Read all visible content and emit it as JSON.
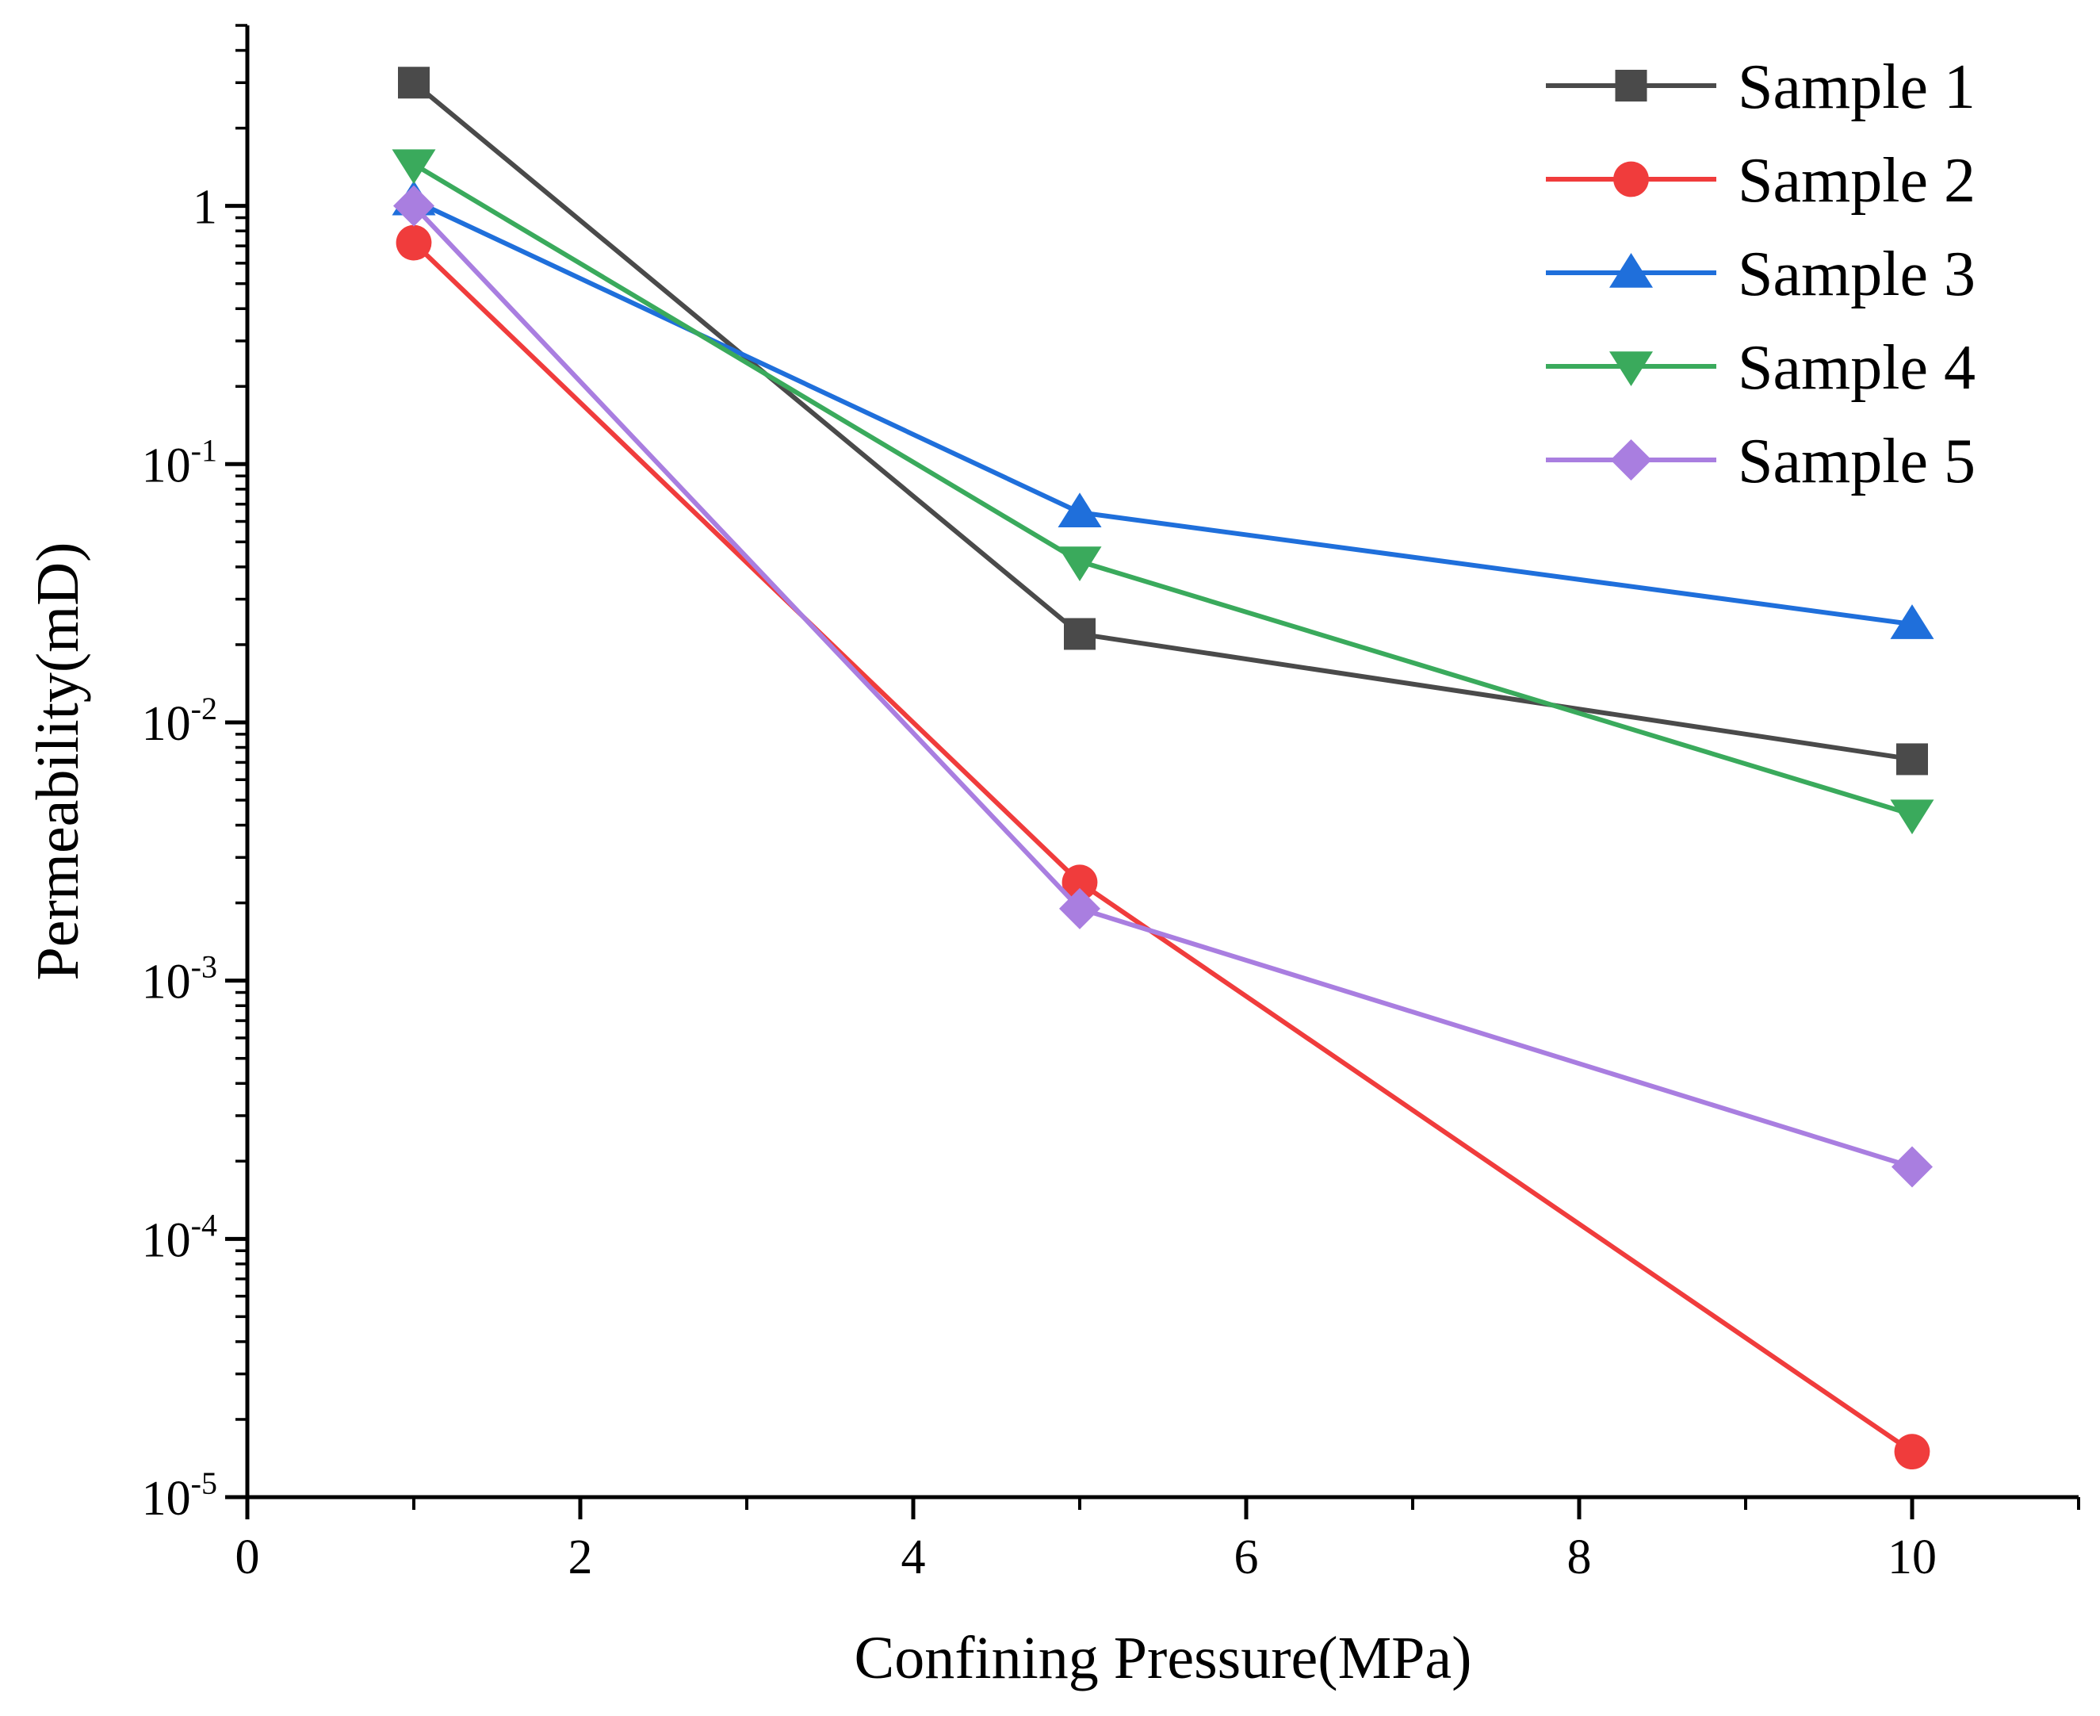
{
  "chart_data": {
    "type": "line",
    "title": "",
    "xlabel": "Confining Pressure(MPa)",
    "ylabel": "Permeability(mD)",
    "x_scale": "linear",
    "y_scale": "log",
    "xlim": [
      0,
      11
    ],
    "ylim": [
      1e-05,
      5
    ],
    "grid": false,
    "legend_position": "top-right",
    "x_ticks": [
      {
        "value": 0,
        "label": "0"
      },
      {
        "value": 2,
        "label": "2"
      },
      {
        "value": 4,
        "label": "4"
      },
      {
        "value": 6,
        "label": "6"
      },
      {
        "value": 8,
        "label": "8"
      },
      {
        "value": 10,
        "label": "10"
      }
    ],
    "y_ticks": [
      {
        "value": 1,
        "base": "1",
        "exp": ""
      },
      {
        "value": 0.1,
        "base": "10",
        "exp": "-1"
      },
      {
        "value": 0.01,
        "base": "10",
        "exp": "-2"
      },
      {
        "value": 0.001,
        "base": "10",
        "exp": "-3"
      },
      {
        "value": 0.0001,
        "base": "10",
        "exp": "-4"
      },
      {
        "value": 1e-05,
        "base": "10",
        "exp": "-5"
      }
    ],
    "x": [
      1,
      5,
      10
    ],
    "series": [
      {
        "name": "Sample 1",
        "color": "#4a4a4a",
        "marker": "square",
        "values": [
          3.0,
          0.022,
          0.0072
        ]
      },
      {
        "name": "Sample 2",
        "color": "#f03c3c",
        "marker": "circle",
        "values": [
          0.72,
          0.0024,
          1.5e-05
        ]
      },
      {
        "name": "Sample 3",
        "color": "#1f6fdb",
        "marker": "triangle-up",
        "values": [
          1.05,
          0.065,
          0.024
        ]
      },
      {
        "name": "Sample 4",
        "color": "#3aaa5c",
        "marker": "triangle-down",
        "values": [
          1.45,
          0.042,
          0.0044
        ]
      },
      {
        "name": "Sample 5",
        "color": "#a97ee0",
        "marker": "diamond",
        "values": [
          1.0,
          0.0019,
          0.00019
        ]
      }
    ]
  }
}
